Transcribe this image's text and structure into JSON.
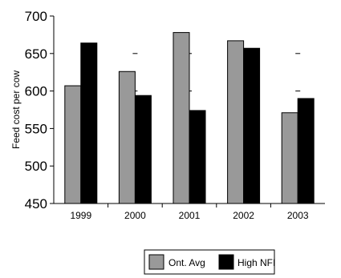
{
  "chart_data": {
    "type": "bar",
    "categories": [
      "1999",
      "2000",
      "2001",
      "2002",
      "2003"
    ],
    "series": [
      {
        "name": "Ont. Avg",
        "values": [
          607,
          626,
          678,
          667,
          571
        ],
        "color": "#999999"
      },
      {
        "name": "High NFI",
        "values": [
          664,
          594,
          574,
          657,
          590
        ],
        "color": "#000000"
      }
    ],
    "title": "",
    "xlabel": "",
    "ylabel": "Feed cost per cow",
    "ylim": [
      450,
      700
    ],
    "yticks": [
      450,
      500,
      550,
      600,
      650,
      700
    ],
    "grid": false,
    "legend_position": "bottom"
  }
}
